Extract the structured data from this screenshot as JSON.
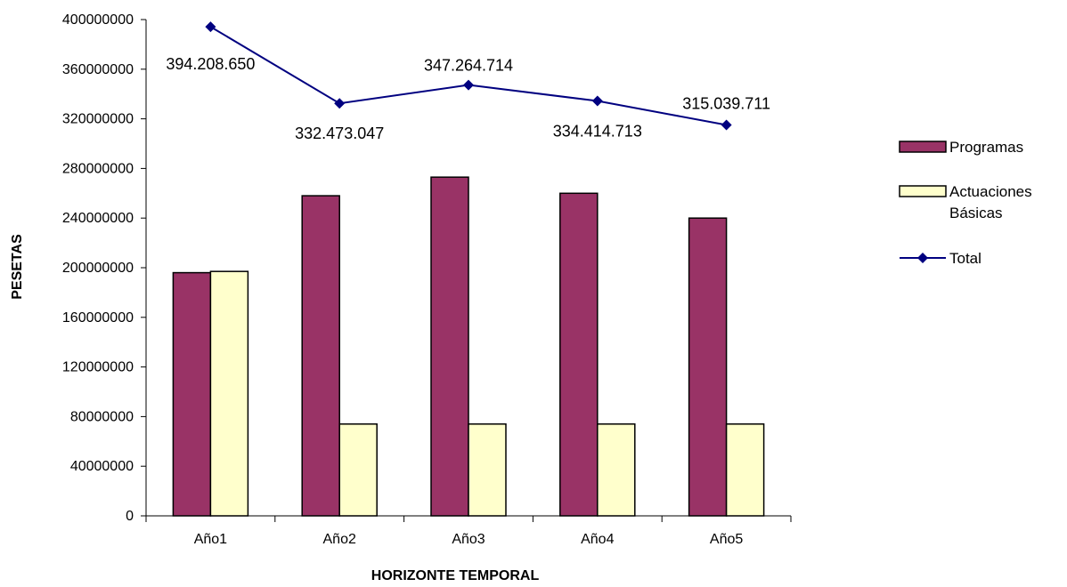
{
  "chart_data": {
    "type": "bar",
    "categories": [
      "Año1",
      "Año2",
      "Año3",
      "Año4",
      "Año5"
    ],
    "series": [
      {
        "name": "Programas",
        "kind": "bar",
        "color": "#993366",
        "values": [
          196000000,
          258000000,
          273000000,
          260000000,
          240000000
        ]
      },
      {
        "name": "Actuaciones Básicas",
        "legend_lines": [
          "Actuaciones",
          "Básicas"
        ],
        "kind": "bar",
        "color": "#FFFFCC",
        "values": [
          197000000,
          74000000,
          74000000,
          74000000,
          74000000
        ]
      },
      {
        "name": "Total",
        "kind": "line",
        "color": "#000080",
        "values": [
          394208650,
          332473047,
          347264714,
          334414713,
          315039711
        ]
      }
    ],
    "data_labels": [
      "394.208.650",
      "332.473.047",
      "347.264.714",
      "334.414.713",
      "315.039.711"
    ],
    "y_ticks": [
      "0",
      "40000000",
      "80000000",
      "120000000",
      "160000000",
      "200000000",
      "240000000",
      "280000000",
      "320000000",
      "360000000",
      "400000000"
    ],
    "ylim": [
      0,
      400000000
    ],
    "xlabel": "HORIZONTE TEMPORAL",
    "ylabel": "PESETAS",
    "title": "",
    "legend_position": "right",
    "grid": false
  }
}
